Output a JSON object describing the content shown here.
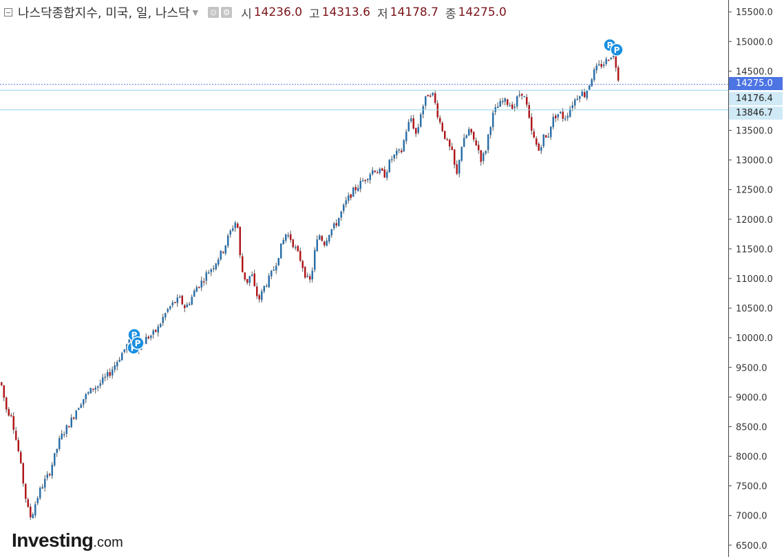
{
  "header": {
    "title": "나스닥종합지수, 미국, 일, 나스닥",
    "open_label": "시",
    "open_value": "14236.0",
    "high_label": "고",
    "high_value": "14313.6",
    "low_label": "저",
    "low_value": "14178.7",
    "close_label": "종",
    "close_value": "14275.0"
  },
  "price_tags": {
    "last": "14275.0",
    "line1": "14176.4",
    "line2": "13846.7"
  },
  "logo": {
    "main": "Investing",
    "suffix": ".com"
  },
  "colors": {
    "up": "#2b6fa8",
    "down": "#b0171b",
    "last_price": "#4d74e3",
    "hline": "#8fd3e8",
    "marker": "#1a8fe0"
  },
  "chart_data": {
    "type": "candlestick",
    "title": "나스닥종합지수, 미국, 일, 나스닥",
    "ylim": [
      6300,
      15700
    ],
    "y_ticks": [
      "6500.0",
      "7000.0",
      "7500.0",
      "8000.0",
      "8500.0",
      "9000.0",
      "9500.0",
      "10000.0",
      "10500.0",
      "11000.0",
      "11500.0",
      "12000.0",
      "12500.0",
      "13000.0",
      "13500.0",
      "14000.0",
      "14500.0",
      "15000.0",
      "15500.0"
    ],
    "horizontal_lines": [
      14176.4,
      13846.7
    ],
    "last_price": 14275.0,
    "path_anchors": [
      [
        0,
        9250
      ],
      [
        6,
        8900
      ],
      [
        10,
        8700
      ],
      [
        14,
        8800
      ],
      [
        20,
        8400
      ],
      [
        26,
        8050
      ],
      [
        32,
        7600
      ],
      [
        38,
        7150
      ],
      [
        44,
        6950
      ],
      [
        50,
        7200
      ],
      [
        56,
        7400
      ],
      [
        62,
        7550
      ],
      [
        70,
        7700
      ],
      [
        78,
        8000
      ],
      [
        86,
        8300
      ],
      [
        94,
        8450
      ],
      [
        102,
        8600
      ],
      [
        110,
        8800
      ],
      [
        118,
        8950
      ],
      [
        126,
        9050
      ],
      [
        134,
        9150
      ],
      [
        142,
        9200
      ],
      [
        150,
        9300
      ],
      [
        158,
        9400
      ],
      [
        166,
        9550
      ],
      [
        174,
        9700
      ],
      [
        182,
        9850
      ],
      [
        188,
        9950
      ],
      [
        196,
        9800
      ],
      [
        204,
        9900
      ],
      [
        212,
        10000
      ],
      [
        220,
        10050
      ],
      [
        228,
        10150
      ],
      [
        236,
        10350
      ],
      [
        244,
        10500
      ],
      [
        252,
        10600
      ],
      [
        260,
        10650
      ],
      [
        268,
        10500
      ],
      [
        276,
        10650
      ],
      [
        284,
        10850
      ],
      [
        292,
        10950
      ],
      [
        300,
        11100
      ],
      [
        308,
        11200
      ],
      [
        316,
        11350
      ],
      [
        324,
        11500
      ],
      [
        332,
        11750
      ],
      [
        338,
        11900
      ],
      [
        343,
        12000
      ],
      [
        348,
        11300
      ],
      [
        352,
        11050
      ],
      [
        358,
        10950
      ],
      [
        364,
        11100
      ],
      [
        370,
        10750
      ],
      [
        376,
        10650
      ],
      [
        382,
        10850
      ],
      [
        390,
        11000
      ],
      [
        398,
        11200
      ],
      [
        406,
        11500
      ],
      [
        414,
        11750
      ],
      [
        420,
        11700
      ],
      [
        428,
        11500
      ],
      [
        436,
        11300
      ],
      [
        444,
        11000
      ],
      [
        450,
        10950
      ],
      [
        456,
        11450
      ],
      [
        462,
        11750
      ],
      [
        470,
        11600
      ],
      [
        478,
        11800
      ],
      [
        486,
        11900
      ],
      [
        494,
        12100
      ],
      [
        502,
        12300
      ],
      [
        510,
        12450
      ],
      [
        518,
        12550
      ],
      [
        526,
        12650
      ],
      [
        534,
        12750
      ],
      [
        542,
        12850
      ],
      [
        550,
        12800
      ],
      [
        558,
        12750
      ],
      [
        566,
        13000
      ],
      [
        574,
        13100
      ],
      [
        582,
        13150
      ],
      [
        590,
        13550
      ],
      [
        596,
        13700
      ],
      [
        604,
        13400
      ],
      [
        610,
        13800
      ],
      [
        616,
        14000
      ],
      [
        622,
        14150
      ],
      [
        628,
        14100
      ],
      [
        636,
        13700
      ],
      [
        642,
        13500
      ],
      [
        648,
        13300
      ],
      [
        656,
        13100
      ],
      [
        662,
        12700
      ],
      [
        668,
        13200
      ],
      [
        674,
        13350
      ],
      [
        680,
        13500
      ],
      [
        686,
        13350
      ],
      [
        692,
        13250
      ],
      [
        698,
        13000
      ],
      [
        704,
        13150
      ],
      [
        710,
        13550
      ],
      [
        716,
        13800
      ],
      [
        722,
        13900
      ],
      [
        730,
        14000
      ],
      [
        738,
        13950
      ],
      [
        746,
        13900
      ],
      [
        752,
        14100
      ],
      [
        758,
        14150
      ],
      [
        764,
        13900
      ],
      [
        770,
        13500
      ],
      [
        776,
        13300
      ],
      [
        782,
        13150
      ],
      [
        788,
        13400
      ],
      [
        794,
        13350
      ],
      [
        800,
        13650
      ],
      [
        806,
        13750
      ],
      [
        812,
        13800
      ],
      [
        818,
        13700
      ],
      [
        824,
        13800
      ],
      [
        830,
        13950
      ],
      [
        836,
        14050
      ],
      [
        842,
        14150
      ],
      [
        848,
        14100
      ],
      [
        854,
        14250
      ],
      [
        860,
        14450
      ],
      [
        866,
        14550
      ],
      [
        872,
        14600
      ],
      [
        878,
        14650
      ],
      [
        884,
        14750
      ],
      [
        890,
        14800
      ],
      [
        896,
        14450
      ],
      [
        900,
        14250
      ]
    ]
  }
}
